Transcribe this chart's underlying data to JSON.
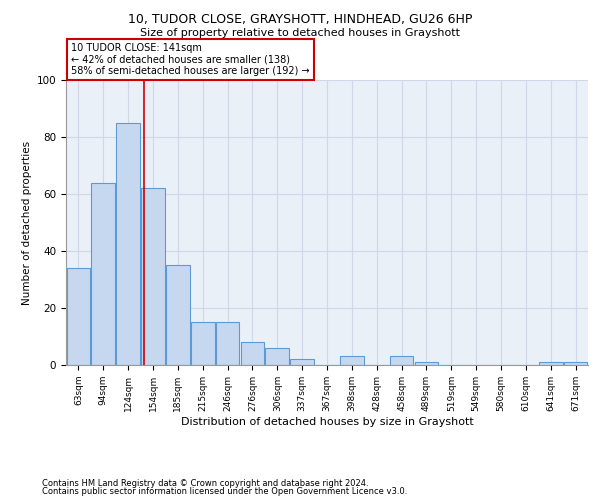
{
  "title": "10, TUDOR CLOSE, GRAYSHOTT, HINDHEAD, GU26 6HP",
  "subtitle": "Size of property relative to detached houses in Grayshott",
  "xlabel": "Distribution of detached houses by size in Grayshott",
  "ylabel": "Number of detached properties",
  "categories": [
    "63sqm",
    "94sqm",
    "124sqm",
    "154sqm",
    "185sqm",
    "215sqm",
    "246sqm",
    "276sqm",
    "306sqm",
    "337sqm",
    "367sqm",
    "398sqm",
    "428sqm",
    "458sqm",
    "489sqm",
    "519sqm",
    "549sqm",
    "580sqm",
    "610sqm",
    "641sqm",
    "671sqm"
  ],
  "values": [
    34,
    64,
    85,
    62,
    35,
    15,
    15,
    8,
    6,
    2,
    0,
    3,
    0,
    3,
    1,
    0,
    0,
    0,
    0,
    1,
    1
  ],
  "bar_color": "#c5d8f0",
  "bar_edge_color": "#5b9bd5",
  "red_line_x": 2.65,
  "annotation_text": "10 TUDOR CLOSE: 141sqm\n← 42% of detached houses are smaller (138)\n58% of semi-detached houses are larger (192) →",
  "annotation_box_color": "#ffffff",
  "annotation_box_edge_color": "#cc0000",
  "ylim": [
    0,
    100
  ],
  "yticks": [
    0,
    20,
    40,
    60,
    80,
    100
  ],
  "grid_color": "#d0d8e8",
  "background_color": "#eaf0f8",
  "footnote1": "Contains HM Land Registry data © Crown copyright and database right 2024.",
  "footnote2": "Contains public sector information licensed under the Open Government Licence v3.0."
}
